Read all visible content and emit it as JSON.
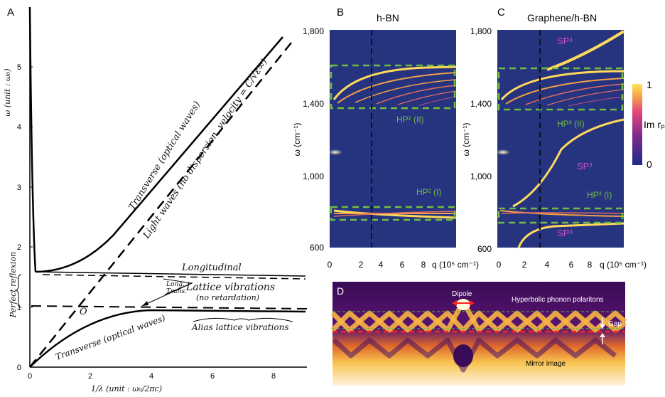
{
  "panel_a": {
    "letter": "A",
    "y_axis_label": "ω (unit : ω₀)",
    "x_axis_label": "1/λ (unit : ω₀/2πc)",
    "y_ticks": [
      "0",
      "1",
      "2",
      "3",
      "4",
      "5"
    ],
    "x_ticks": [
      "0",
      "2",
      "4",
      "6",
      "8"
    ],
    "perfect_reflexion": "Perfect reflexion",
    "label_transverse_optical_upper": "Transverse (optical waves)",
    "label_light_waves": "Light waves (no dispersion, velocity = C/√ε∞)",
    "label_longitudinal": "Longitudinal",
    "label_lattice_vibrations": "Lattice vibrations",
    "label_no_retardation": "(no retardation)",
    "label_long": "Long.",
    "label_trans": "Trans.",
    "label_alias": "Alias lattice vibrations",
    "label_transverse_optical_lower": "Transverse (optical waves)",
    "label_origin_o": "O"
  },
  "panel_b": {
    "letter": "B",
    "title": "h-BN",
    "y_ticks": [
      "1,800",
      "1,400",
      "1,000",
      "600"
    ],
    "x_ticks": [
      "0",
      "2",
      "4",
      "6",
      "8"
    ],
    "y_axis_label": "ω   (cm⁻¹)",
    "x_axis_label": "q (10⁵ cm⁻¹)",
    "band_upper": "HP² (II)",
    "band_lower": "HP² (I)"
  },
  "panel_c": {
    "letter": "C",
    "title": "Graphene/h-BN",
    "y_ticks": [
      "1,800",
      "1,400",
      "1,000",
      "600"
    ],
    "x_ticks": [
      "0",
      "2",
      "4",
      "6",
      "8"
    ],
    "y_axis_label": "ω   (cm⁻¹)",
    "x_axis_label": "q (10⁵ cm⁻¹)",
    "sp_top": "SP³",
    "band_upper": "HP³ (II)",
    "sp_mid": "SP³",
    "band_lower": "HP³ (I)",
    "sp_bottom": "SP³"
  },
  "colorbar": {
    "max": "1",
    "min": "0",
    "label": "Im rₚ"
  },
  "panel_d": {
    "letter": "D",
    "dipole": "Dipole",
    "hpp": "Hyperbolic phonon polaritons",
    "gap": "Gap",
    "mirror": "Mirror image"
  },
  "colors": {
    "map_bg": "#26337e",
    "green_dash": "#6fbf3f",
    "pink": "#d04fc8",
    "curve": "#ffd95a"
  }
}
